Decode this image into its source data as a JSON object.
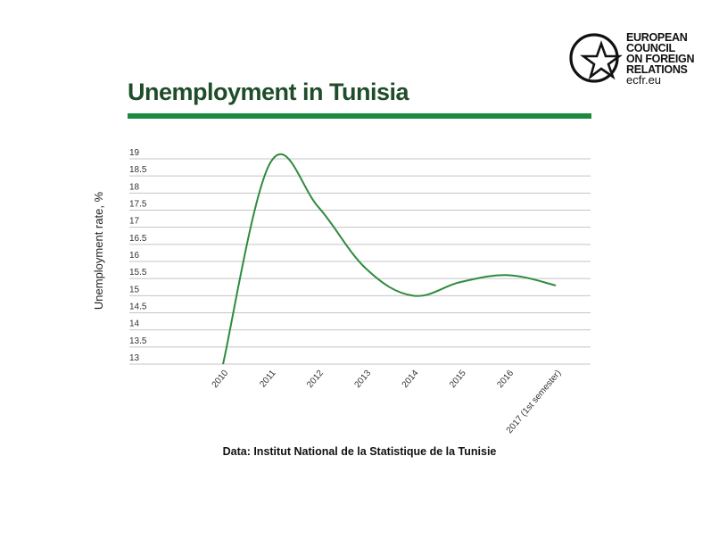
{
  "logo": {
    "lines": [
      "EUROPEAN",
      "COUNCIL",
      "ON FOREIGN",
      "RELATIONS"
    ],
    "url": "ecfr.eu"
  },
  "chart_data": {
    "type": "line",
    "title": "Unemployment in Tunisia",
    "ylabel": "Unemployment rate, %",
    "xlabel": "",
    "categories": [
      "2010",
      "2011",
      "2012",
      "2013",
      "2014",
      "2015",
      "2016",
      "2017 (1st semester)"
    ],
    "series": [
      {
        "values": [
          13.0,
          18.9,
          17.6,
          15.8,
          15.0,
          15.4,
          15.6,
          15.3
        ]
      }
    ],
    "yticks": [
      "19",
      "18.5",
      "18",
      "17.5",
      "17",
      "16.5",
      "16",
      "15.5",
      "15",
      "14.5",
      "14",
      "13.5",
      "13"
    ],
    "ylim": [
      13,
      19
    ],
    "grid": true,
    "line_color": "#2e8b3e"
  },
  "source": "Data: Institut National de la Statistique de la Tunisie"
}
